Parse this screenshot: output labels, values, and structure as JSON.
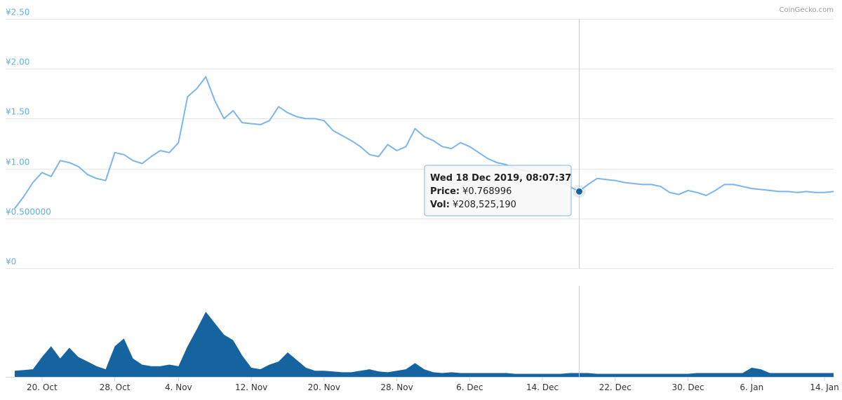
{
  "credits": "CoinGecko.com",
  "chart_data": [
    {
      "type": "line",
      "name": "price",
      "y_unit": "¥",
      "ylim": [
        0,
        2.5
      ],
      "yticks": [
        {
          "value": 0,
          "label": "¥0"
        },
        {
          "value": 0.5,
          "label": "¥0.500000"
        },
        {
          "value": 1.0,
          "label": "¥1.00"
        },
        {
          "value": 1.5,
          "label": "¥1.50"
        },
        {
          "value": 2.0,
          "label": "¥2.00"
        },
        {
          "value": 2.5,
          "label": "¥2.50"
        }
      ],
      "grid": true,
      "x": [
        "2019-10-17",
        "2019-10-18",
        "2019-10-19",
        "2019-10-20",
        "2019-10-21",
        "2019-10-22",
        "2019-10-23",
        "2019-10-24",
        "2019-10-25",
        "2019-10-26",
        "2019-10-27",
        "2019-10-28",
        "2019-10-29",
        "2019-10-30",
        "2019-10-31",
        "2019-11-01",
        "2019-11-02",
        "2019-11-03",
        "2019-11-04",
        "2019-11-05",
        "2019-11-06",
        "2019-11-07",
        "2019-11-08",
        "2019-11-09",
        "2019-11-10",
        "2019-11-11",
        "2019-11-12",
        "2019-11-13",
        "2019-11-14",
        "2019-11-15",
        "2019-11-16",
        "2019-11-17",
        "2019-11-18",
        "2019-11-19",
        "2019-11-20",
        "2019-11-21",
        "2019-11-22",
        "2019-11-23",
        "2019-11-24",
        "2019-11-25",
        "2019-11-26",
        "2019-11-27",
        "2019-11-28",
        "2019-11-29",
        "2019-11-30",
        "2019-12-01",
        "2019-12-02",
        "2019-12-03",
        "2019-12-04",
        "2019-12-05",
        "2019-12-06",
        "2019-12-07",
        "2019-12-08",
        "2019-12-09",
        "2019-12-10",
        "2019-12-11",
        "2019-12-12",
        "2019-12-13",
        "2019-12-14",
        "2019-12-15",
        "2019-12-16",
        "2019-12-17",
        "2019-12-18",
        "2019-12-19",
        "2019-12-20",
        "2019-12-21",
        "2019-12-22",
        "2019-12-23",
        "2019-12-24",
        "2019-12-25",
        "2019-12-26",
        "2019-12-27",
        "2019-12-28",
        "2019-12-29",
        "2019-12-30",
        "2019-12-31",
        "2020-01-01",
        "2020-01-02",
        "2020-01-03",
        "2020-01-04",
        "2020-01-05",
        "2020-01-06",
        "2020-01-07",
        "2020-01-08",
        "2020-01-09",
        "2020-01-10",
        "2020-01-11",
        "2020-01-12",
        "2020-01-13",
        "2020-01-14",
        "2020-01-15"
      ],
      "values": [
        0.6,
        0.72,
        0.86,
        0.96,
        0.92,
        1.08,
        1.06,
        1.02,
        0.94,
        0.9,
        0.88,
        1.16,
        1.14,
        1.08,
        1.05,
        1.12,
        1.18,
        1.16,
        1.26,
        1.72,
        1.8,
        1.92,
        1.68,
        1.5,
        1.58,
        1.46,
        1.45,
        1.44,
        1.48,
        1.62,
        1.56,
        1.52,
        1.5,
        1.5,
        1.48,
        1.38,
        1.33,
        1.28,
        1.22,
        1.14,
        1.12,
        1.24,
        1.18,
        1.22,
        1.4,
        1.32,
        1.28,
        1.22,
        1.2,
        1.26,
        1.22,
        1.16,
        1.1,
        1.06,
        1.04,
        1.0,
        0.98,
        0.96,
        0.92,
        0.9,
        0.86,
        0.82,
        0.77,
        0.84,
        0.9,
        0.89,
        0.88,
        0.86,
        0.85,
        0.84,
        0.84,
        0.82,
        0.76,
        0.74,
        0.78,
        0.76,
        0.73,
        0.78,
        0.84,
        0.84,
        0.82,
        0.8,
        0.79,
        0.78,
        0.77,
        0.77,
        0.76,
        0.77,
        0.76,
        0.76,
        0.77
      ]
    },
    {
      "type": "area",
      "name": "volume",
      "x_ticks": [
        "20. Oct",
        "28. Oct",
        "4. Nov",
        "12. Nov",
        "20. Nov",
        "28. Nov",
        "6. Dec",
        "14. Dec",
        "22. Dec",
        "30. Dec",
        "6. Jan",
        "14. Jan"
      ],
      "x": [
        "2019-10-17",
        "2019-10-18",
        "2019-10-19",
        "2019-10-20",
        "2019-10-21",
        "2019-10-22",
        "2019-10-23",
        "2019-10-24",
        "2019-10-25",
        "2019-10-26",
        "2019-10-27",
        "2019-10-28",
        "2019-10-29",
        "2019-10-30",
        "2019-10-31",
        "2019-11-01",
        "2019-11-02",
        "2019-11-03",
        "2019-11-04",
        "2019-11-05",
        "2019-11-06",
        "2019-11-07",
        "2019-11-08",
        "2019-11-09",
        "2019-11-10",
        "2019-11-11",
        "2019-11-12",
        "2019-11-13",
        "2019-11-14",
        "2019-11-15",
        "2019-11-16",
        "2019-11-17",
        "2019-11-18",
        "2019-11-19",
        "2019-11-20",
        "2019-11-21",
        "2019-11-22",
        "2019-11-23",
        "2019-11-24",
        "2019-11-25",
        "2019-11-26",
        "2019-11-27",
        "2019-11-28",
        "2019-11-29",
        "2019-11-30",
        "2019-12-01",
        "2019-12-02",
        "2019-12-03",
        "2019-12-04",
        "2019-12-05",
        "2019-12-06",
        "2019-12-07",
        "2019-12-08",
        "2019-12-09",
        "2019-12-10",
        "2019-12-11",
        "2019-12-12",
        "2019-12-13",
        "2019-12-14",
        "2019-12-15",
        "2019-12-16",
        "2019-12-17",
        "2019-12-18",
        "2019-12-19",
        "2019-12-20",
        "2019-12-21",
        "2019-12-22",
        "2019-12-23",
        "2019-12-24",
        "2019-12-25",
        "2019-12-26",
        "2019-12-27",
        "2019-12-28",
        "2019-12-29",
        "2019-12-30",
        "2019-12-31",
        "2020-01-01",
        "2020-01-02",
        "2020-01-03",
        "2020-01-04",
        "2020-01-05",
        "2020-01-06",
        "2020-01-07",
        "2020-01-08",
        "2020-01-09",
        "2020-01-10",
        "2020-01-11",
        "2020-01-12",
        "2020-01-13",
        "2020-01-14",
        "2020-01-15"
      ],
      "values": [
        0.08,
        0.09,
        0.1,
        0.26,
        0.4,
        0.24,
        0.38,
        0.26,
        0.2,
        0.14,
        0.1,
        0.4,
        0.5,
        0.24,
        0.16,
        0.14,
        0.14,
        0.16,
        0.14,
        0.4,
        0.62,
        0.85,
        0.7,
        0.55,
        0.48,
        0.28,
        0.12,
        0.1,
        0.16,
        0.2,
        0.32,
        0.22,
        0.12,
        0.08,
        0.08,
        0.07,
        0.06,
        0.06,
        0.08,
        0.1,
        0.07,
        0.06,
        0.08,
        0.1,
        0.18,
        0.1,
        0.06,
        0.05,
        0.06,
        0.05,
        0.05,
        0.05,
        0.05,
        0.05,
        0.05,
        0.04,
        0.04,
        0.04,
        0.04,
        0.04,
        0.04,
        0.05,
        0.05,
        0.05,
        0.04,
        0.04,
        0.04,
        0.04,
        0.04,
        0.04,
        0.04,
        0.04,
        0.04,
        0.04,
        0.04,
        0.05,
        0.05,
        0.05,
        0.05,
        0.05,
        0.05,
        0.12,
        0.1,
        0.05,
        0.05,
        0.05,
        0.05,
        0.05,
        0.05,
        0.05,
        0.05
      ]
    }
  ],
  "tooltip": {
    "title": "Wed 18 Dec 2019, 08:07:37",
    "price_label": "Price:",
    "price_value": "¥0.768996",
    "vol_label": "Vol:",
    "vol_value": "¥208,525,190"
  },
  "hover_date": "2019-12-18",
  "colors": {
    "price_line": "#7cb5ec",
    "volume_fill": "#15639f",
    "tooltip_border": "#7cb5ec",
    "marker": "#15639f"
  }
}
